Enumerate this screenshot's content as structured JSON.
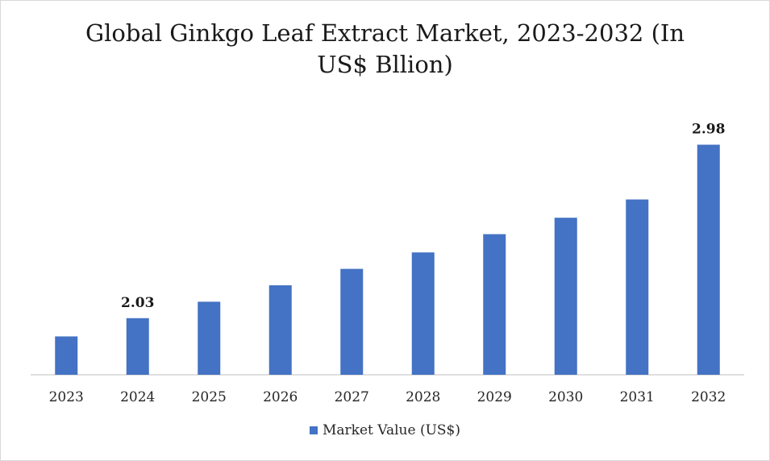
{
  "chart_data": {
    "type": "bar",
    "title": "Global Ginkgo Leaf Extract Market, 2023-2032 (In US$ Bllion)",
    "categories": [
      "2023",
      "2024",
      "2025",
      "2026",
      "2027",
      "2028",
      "2029",
      "2030",
      "2031",
      "2032"
    ],
    "series": [
      {
        "name": "Market Value (US$)",
        "values": [
          1.93,
          2.03,
          2.12,
          2.21,
          2.3,
          2.39,
          2.49,
          2.58,
          2.68,
          2.98
        ],
        "color": "#4472c4"
      }
    ],
    "data_labels": [
      {
        "category": "2024",
        "text": "2.03"
      },
      {
        "category": "2032",
        "text": "2.98"
      }
    ],
    "ylim": [
      1.72,
      3.0
    ],
    "y_axis_visible": false,
    "grid": false,
    "legend_position": "bottom"
  }
}
